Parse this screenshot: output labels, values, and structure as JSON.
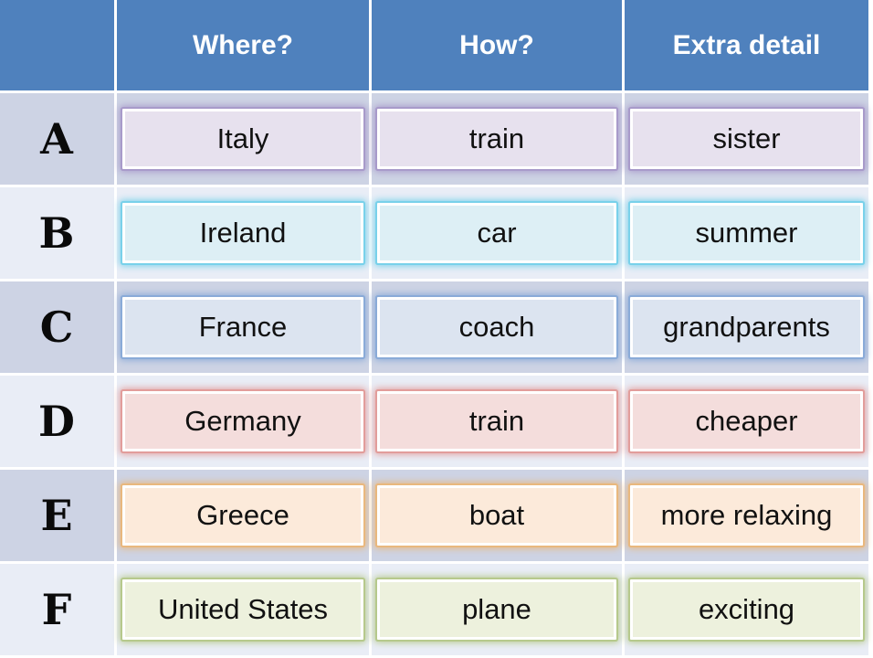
{
  "table": {
    "headers": [
      {
        "label": ""
      },
      {
        "label": "Where?"
      },
      {
        "label": "How?"
      },
      {
        "label": "Extra detail"
      }
    ],
    "rows": [
      {
        "letter": "A",
        "theme": "purple",
        "cells": [
          "Italy",
          "train",
          "sister"
        ]
      },
      {
        "letter": "B",
        "theme": "aqua",
        "cells": [
          "Ireland",
          "car",
          "summer"
        ]
      },
      {
        "letter": "C",
        "theme": "blue",
        "cells": [
          "France",
          "coach",
          "grandparents"
        ]
      },
      {
        "letter": "D",
        "theme": "red",
        "cells": [
          "Germany",
          "train",
          "cheaper"
        ]
      },
      {
        "letter": "E",
        "theme": "orange",
        "cells": [
          "Greece",
          "boat",
          "more relaxing"
        ]
      },
      {
        "letter": "F",
        "theme": "green",
        "cells": [
          "United States",
          "plane",
          "exciting"
        ]
      }
    ]
  },
  "themes": {
    "purple": {
      "fill": "#e7e1ee",
      "glow": "#a89aca"
    },
    "aqua": {
      "fill": "#ddeff5",
      "glow": "#79d1ea"
    },
    "blue": {
      "fill": "#dce4f0",
      "glow": "#8aabd8"
    },
    "red": {
      "fill": "#f4dddc",
      "glow": "#e29d9b"
    },
    "orange": {
      "fill": "#fceada",
      "glow": "#e9b87e"
    },
    "green": {
      "fill": "#edf1dd",
      "glow": "#b6c98c"
    }
  },
  "colors": {
    "header_bg": "#4f81bd",
    "header_text": "#ffffff",
    "band_dark": "#cdd3e4",
    "band_light": "#e9edf6",
    "grid_lines": "#ffffff",
    "cell_text": "#111111"
  }
}
